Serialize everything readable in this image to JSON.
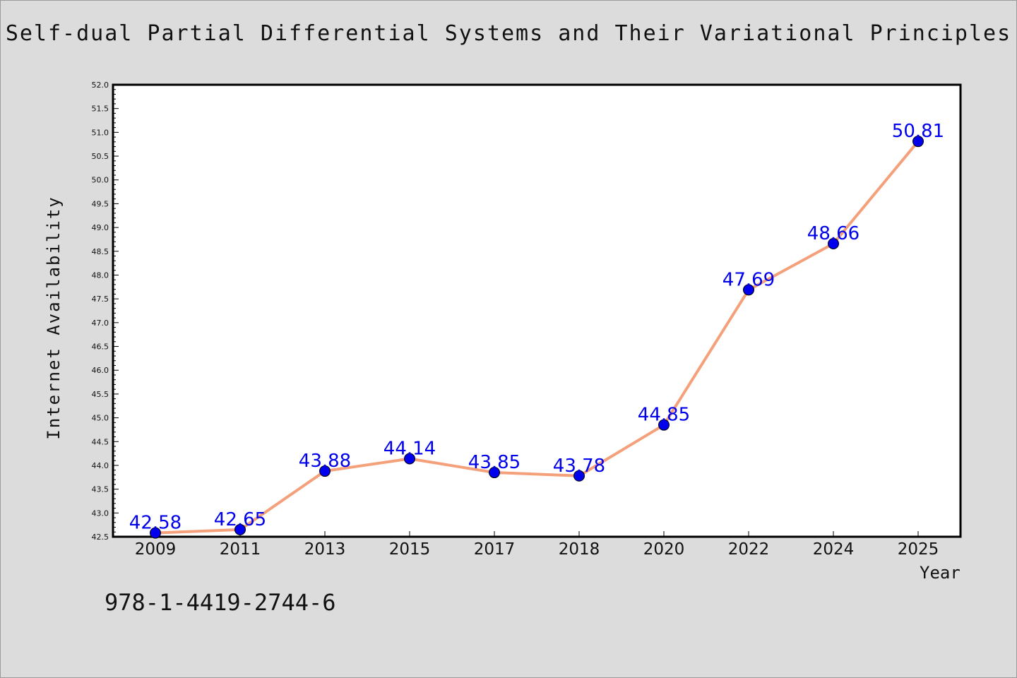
{
  "chart_data": {
    "type": "line",
    "title": "Self-dual Partial Differential Systems and Their Variational Principles",
    "xlabel": "Year",
    "ylabel": "Internet Availability",
    "categories": [
      "2009",
      "2011",
      "2013",
      "2015",
      "2017",
      "2018",
      "2020",
      "2022",
      "2024",
      "2025"
    ],
    "values": [
      42.58,
      42.65,
      43.88,
      44.14,
      43.85,
      43.78,
      44.85,
      47.69,
      48.66,
      50.81
    ],
    "data_labels": [
      "42.58",
      "42.65",
      "43.88",
      "44.14",
      "43.85",
      "43.78",
      "44.85",
      "47.69",
      "48.66",
      "50.81"
    ],
    "ylim": [
      42.5,
      52.0
    ],
    "yticks": [
      "42.5",
      "43.0",
      "43.5",
      "44.0",
      "44.5",
      "45.0",
      "45.5",
      "46.0",
      "46.5",
      "47.0",
      "47.5",
      "48.0",
      "48.5",
      "49.0",
      "49.5",
      "50.0",
      "50.5",
      "51.0",
      "51.5",
      "52.0"
    ],
    "grid": false,
    "colors": {
      "line": "#f4a07a",
      "marker": "#0000ee",
      "label": "#0000ee",
      "background": "#dcdcdc",
      "plot_background": "#ffffff"
    }
  },
  "annotation": "978-1-4419-2744-6"
}
